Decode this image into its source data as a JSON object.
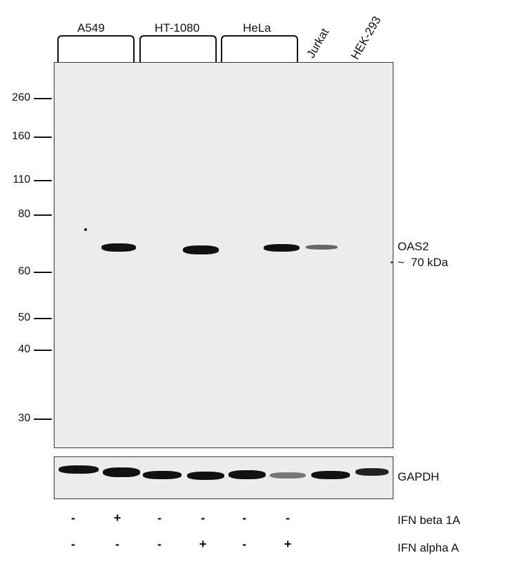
{
  "cell_lines": {
    "a549": "A549",
    "ht1080": "HT-1080",
    "hela": "HeLa",
    "jurkat": "Jurkat",
    "hek293": "HEK-293"
  },
  "mw_markers": [
    "260",
    "160",
    "110",
    "80",
    "60",
    "50",
    "40",
    "30"
  ],
  "target": {
    "name": "OAS2",
    "size": "~  70 kDa"
  },
  "loading_control": "GAPDH",
  "treatments": {
    "ifn_beta": {
      "label": "IFN beta 1A",
      "signs": [
        "-",
        "+",
        "-",
        "-",
        "-",
        "-"
      ]
    },
    "ifn_alpha": {
      "label": "IFN alpha A",
      "signs": [
        "-",
        "-",
        "-",
        "+",
        "-",
        "+"
      ]
    }
  },
  "colors": {
    "membrane": "#ececec",
    "band": "#111111"
  }
}
